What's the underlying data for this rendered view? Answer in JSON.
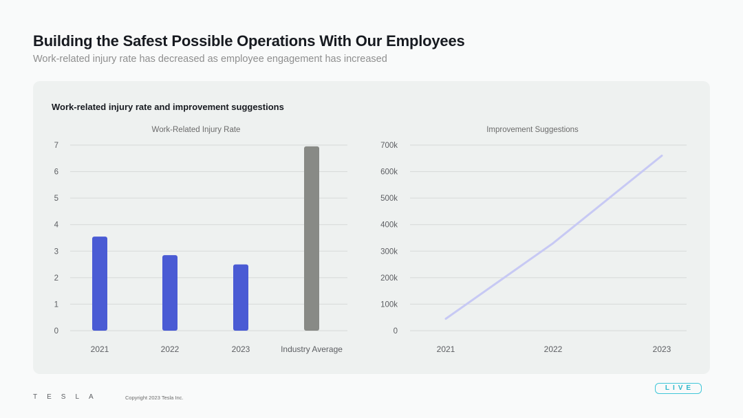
{
  "header": {
    "title": "Building the Safest Possible Operations With Our Employees",
    "subtitle": "Work-related injury rate has decreased as employee engagement has increased"
  },
  "card": {
    "title": "Work-related injury rate and improvement suggestions"
  },
  "chart_data": [
    {
      "type": "bar",
      "title": "Work-Related Injury Rate",
      "categories": [
        "2021",
        "2022",
        "2023",
        "Industry Average"
      ],
      "values": [
        3.55,
        2.85,
        2.5,
        6.95
      ],
      "colors": [
        "#4a5bd4",
        "#4a5bd4",
        "#4a5bd4",
        "#888a86"
      ],
      "ylim": [
        0,
        7
      ],
      "yticks": [
        "0",
        "1",
        "2",
        "3",
        "4",
        "5",
        "6",
        "7"
      ],
      "grid": true
    },
    {
      "type": "line",
      "title": "Improvement Suggestions",
      "x": [
        "2021",
        "2022",
        "2023"
      ],
      "values": [
        45000,
        330000,
        660000
      ],
      "color": "#c7c9f4",
      "ylim": [
        0,
        700000
      ],
      "yticks": [
        "0",
        "100k",
        "200k",
        "300k",
        "400k",
        "500k",
        "600k",
        "700k"
      ],
      "grid": true
    }
  ],
  "footer": {
    "logo": "TESLA",
    "copyright": "Copyright 2023 Tesla Inc.",
    "badge": "LIVE"
  }
}
